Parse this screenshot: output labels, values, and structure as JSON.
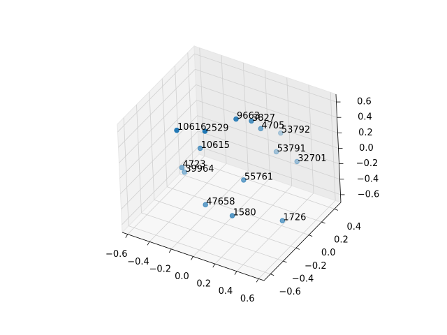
{
  "chart_data": {
    "type": "scatter3d",
    "labels": [
      "10616",
      "2529",
      "9663",
      "3827",
      "4705",
      "53792",
      "10615",
      "53791",
      "32701",
      "4723",
      "39964",
      "55761",
      "47658",
      "1580",
      "1726"
    ],
    "x": [
      -0.43,
      -0.23,
      -0.06,
      0.02,
      0.06,
      0.15,
      -0.3,
      0.17,
      0.34,
      -0.41,
      -0.4,
      0.06,
      -0.15,
      0.07,
      0.41
    ],
    "y": [
      -0.17,
      -0.07,
      0.13,
      0.23,
      0.3,
      0.45,
      -0.04,
      0.34,
      0.37,
      -0.15,
      -0.13,
      0.01,
      -0.24,
      -0.2,
      0.0
    ],
    "z": [
      0.28,
      0.28,
      0.35,
      0.28,
      0.14,
      0.0,
      0.0,
      -0.14,
      -0.21,
      -0.21,
      -0.28,
      -0.28,
      -0.49,
      -0.56,
      -0.63
    ],
    "color": "#1f77b4",
    "depthshade": true,
    "grid": true,
    "xlim": [
      -0.65,
      0.65
    ],
    "ylim": [
      -0.7,
      0.5
    ],
    "zlim": [
      -0.7,
      0.7
    ],
    "xticks": [
      {
        "value": -0.6,
        "label": "−0.6"
      },
      {
        "value": -0.4,
        "label": "−0.4"
      },
      {
        "value": -0.2,
        "label": "−0.2"
      },
      {
        "value": 0,
        "label": "0.0"
      },
      0.2,
      0.4,
      0.6
    ],
    "yticks": [
      {
        "value": -0.6,
        "label": "−0.6"
      },
      {
        "value": -0.4,
        "label": "−0.4"
      },
      {
        "value": -0.2,
        "label": "−0.2"
      },
      {
        "value": 0,
        "label": "0.0"
      },
      0.2,
      0.4
    ],
    "zticks": [
      {
        "value": -0.6,
        "label": "−0.6"
      },
      {
        "value": -0.4,
        "label": "−0.4"
      },
      {
        "value": -0.2,
        "label": "−0.2"
      },
      {
        "value": 0,
        "label": "0.0"
      },
      0.2,
      0.4,
      0.6
    ]
  }
}
